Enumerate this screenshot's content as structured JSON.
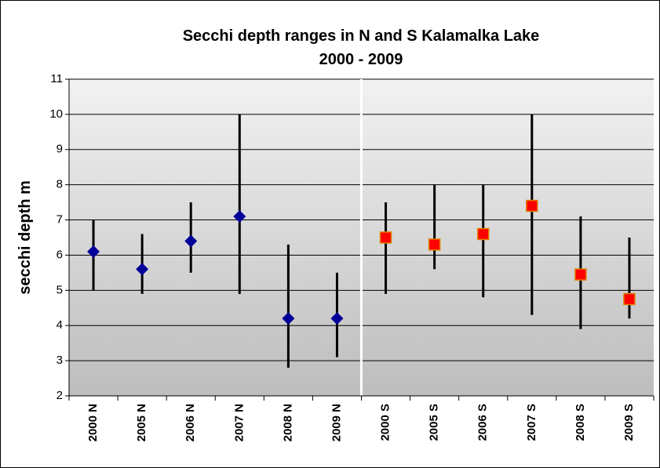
{
  "chart_data": {
    "type": "range",
    "title": "Secchi depth ranges in N and S Kalamalka Lake",
    "subtitle": "2000 - 2009",
    "y_label": "secchi depth m",
    "categories": [
      "2000 N",
      "2005 N",
      "2006 N",
      "2007 N",
      "2008 N",
      "2009 N",
      "2000 S",
      "2005 S",
      "2006 S",
      "2007 S",
      "2008 S",
      "2009 S"
    ],
    "series": [
      {
        "color": "#000099",
        "marker": "diamond",
        "values": [
          6.1,
          5.6,
          6.4,
          7.1,
          4.2,
          4.2,
          null,
          null,
          null,
          null,
          null,
          null
        ],
        "low": [
          5.0,
          4.9,
          5.5,
          4.9,
          2.8,
          3.1,
          null,
          null,
          null,
          null,
          null,
          null
        ],
        "high": [
          7.0,
          6.6,
          7.5,
          10.0,
          6.3,
          5.5,
          null,
          null,
          null,
          null,
          null,
          null
        ]
      },
      {
        "color": "#ff0000",
        "marker": "square",
        "values": [
          null,
          null,
          null,
          null,
          null,
          null,
          6.5,
          6.3,
          6.6,
          7.4,
          5.45,
          4.75
        ],
        "low": [
          null,
          null,
          null,
          null,
          null,
          null,
          4.9,
          5.6,
          4.8,
          4.3,
          3.9,
          4.2
        ],
        "high": [
          null,
          null,
          null,
          null,
          null,
          null,
          7.5,
          8.0,
          8.0,
          10.0,
          7.1,
          6.5
        ]
      }
    ],
    "ylim": [
      2,
      11
    ],
    "yticks": [
      2,
      3,
      4,
      5,
      6,
      7,
      8,
      9,
      10,
      11
    ],
    "grid": true
  }
}
